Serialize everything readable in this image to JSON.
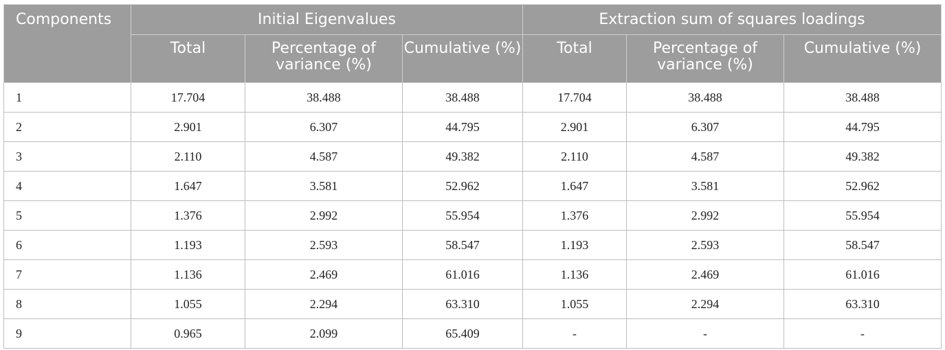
{
  "table": {
    "header_group": {
      "components": "Components",
      "initial": "Initial Eigenvalues",
      "extraction": "Extraction sum of squares loadings"
    },
    "subheaders": [
      "Total",
      "Percentage of variance (%)",
      "Cumulative (%)",
      "Total",
      "Percentage of variance (%)",
      "Cumulative (%)"
    ],
    "rows": [
      [
        "1",
        "17.704",
        "38.488",
        "38.488",
        "17.704",
        "38.488",
        "38.488"
      ],
      [
        "2",
        "2.901",
        "6.307",
        "44.795",
        "2.901",
        "6.307",
        "44.795"
      ],
      [
        "3",
        "2.110",
        "4.587",
        "49.382",
        "2.110",
        "4.587",
        "49.382"
      ],
      [
        "4",
        "1.647",
        "3.581",
        "52.962",
        "1.647",
        "3.581",
        "52.962"
      ],
      [
        "5",
        "1.376",
        "2.992",
        "55.954",
        "1.376",
        "2.992",
        "55.954"
      ],
      [
        "6",
        "1.193",
        "2.593",
        "58.547",
        "1.193",
        "2.593",
        "58.547"
      ],
      [
        "7",
        "1.136",
        "2.469",
        "61.016",
        "1.136",
        "2.469",
        "61.016"
      ],
      [
        "8",
        "1.055",
        "2.294",
        "63.310",
        "1.055",
        "2.294",
        "63.310"
      ],
      [
        "9",
        "0.965",
        "2.099",
        "65.409",
        "-",
        "-",
        "-"
      ]
    ]
  }
}
